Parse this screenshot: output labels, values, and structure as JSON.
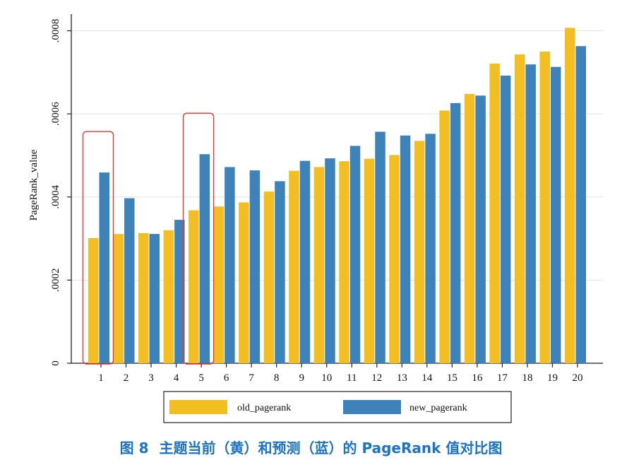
{
  "caption": {
    "figure_label": "图 8",
    "text": "主题当前（黄）和预测（蓝）的 PageRank 值对比图"
  },
  "colors": {
    "old": "#F2BE22",
    "new": "#3D82B8",
    "highlight": "#E53935",
    "caption": "#1A73C7"
  },
  "chart_data": {
    "type": "bar",
    "ylabel": "PageRank_value",
    "xlabel": "",
    "ylim": [
      0,
      0.00084
    ],
    "yticks": [
      0,
      0.0002,
      0.0004,
      0.0006,
      0.0008
    ],
    "ytick_labels": [
      "0",
      ".0002",
      ".0004",
      ".0006",
      ".0008"
    ],
    "grid": true,
    "legend_position": "bottom",
    "categories": [
      "1",
      "2",
      "3",
      "4",
      "5",
      "6",
      "7",
      "8",
      "9",
      "10",
      "11",
      "12",
      "13",
      "14",
      "15",
      "16",
      "17",
      "18",
      "19",
      "20"
    ],
    "series": [
      {
        "name": "old_pagerank",
        "values": [
          0.000301,
          0.000311,
          0.000313,
          0.00032,
          0.000368,
          0.000377,
          0.000387,
          0.000413,
          0.000463,
          0.000472,
          0.000486,
          0.000492,
          0.000501,
          0.000535,
          0.000608,
          0.000648,
          0.000721,
          0.000743,
          0.00075,
          0.000807
        ]
      },
      {
        "name": "new_pagerank",
        "values": [
          0.000459,
          0.000397,
          0.000311,
          0.000345,
          0.000503,
          0.000472,
          0.000464,
          0.000438,
          0.000487,
          0.000493,
          0.000523,
          0.000557,
          0.000548,
          0.000552,
          0.000626,
          0.000644,
          0.000692,
          0.000719,
          0.000713,
          0.000763
        ]
      }
    ],
    "highlighted_categories": [
      "1",
      "5"
    ]
  }
}
